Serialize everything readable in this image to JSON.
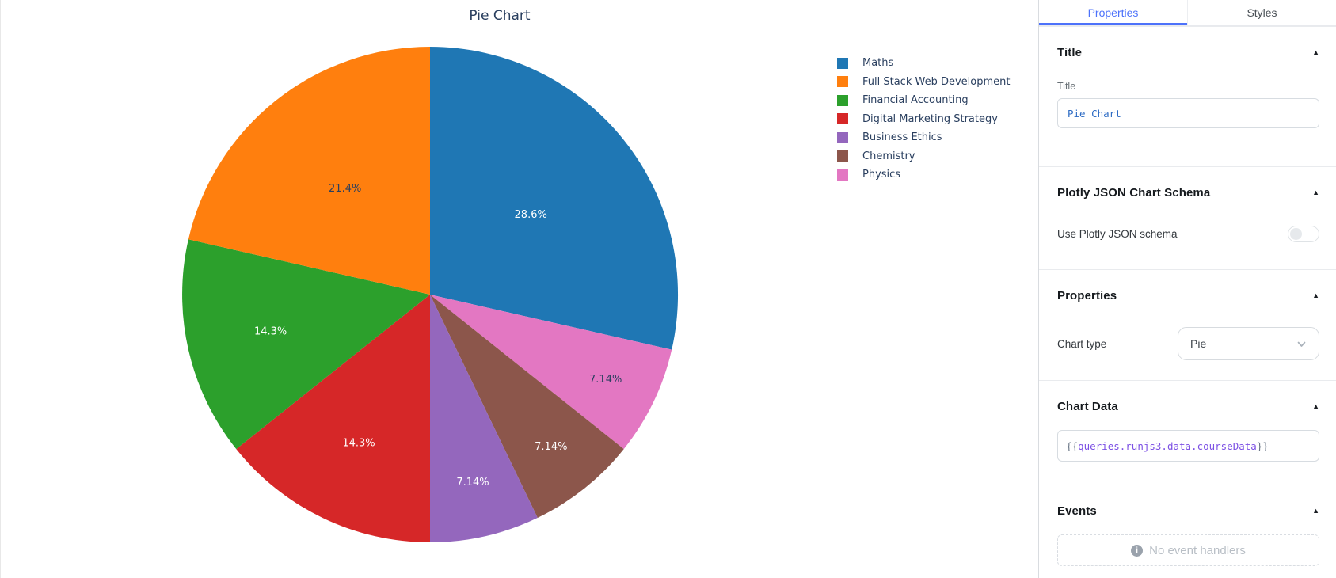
{
  "chart_widget": {
    "title": "Pie Chart"
  },
  "chart_data": {
    "type": "pie",
    "title": "Pie Chart",
    "legend_position": "right",
    "start_angle_deg": 0,
    "direction": "clockwise",
    "slices": [
      {
        "label": "Maths",
        "pct_label": "28.6%",
        "value_pct": 28.571,
        "color": "#1f77b4",
        "text_color": "#ffffff",
        "label_r": 0.52
      },
      {
        "label": "Full Stack Web Development",
        "pct_label": "21.4%",
        "value_pct": 21.429,
        "color": "#ff7f0e",
        "text_color": "#2a3f5f",
        "label_r": 0.55
      },
      {
        "label": "Financial Accounting",
        "pct_label": "14.3%",
        "value_pct": 14.286,
        "color": "#2ca02c",
        "text_color": "#ffffff",
        "label_r": 0.66
      },
      {
        "label": "Digital Marketing Strategy",
        "pct_label": "14.3%",
        "value_pct": 14.286,
        "color": "#d62728",
        "text_color": "#ffffff",
        "label_r": 0.663
      },
      {
        "label": "Business Ethics",
        "pct_label": "7.14%",
        "value_pct": 7.143,
        "color": "#9467bd",
        "text_color": "#ffffff",
        "label_r": 0.775
      },
      {
        "label": "Chemistry",
        "pct_label": "7.14%",
        "value_pct": 7.143,
        "color": "#8c564b",
        "text_color": "#ffffff",
        "label_r": 0.783
      },
      {
        "label": "Physics",
        "pct_label": "7.14%",
        "value_pct": 7.143,
        "color": "#e377c2",
        "text_color": "#2a3f5f",
        "label_r": 0.786
      }
    ],
    "clockwise_draw_order": [
      0,
      6,
      5,
      4,
      3,
      2,
      1
    ]
  },
  "panel": {
    "tabs": [
      {
        "label": "Properties",
        "active": true
      },
      {
        "label": "Styles",
        "active": false
      }
    ],
    "sections": {
      "title": {
        "heading": "Title",
        "field_label": "Title",
        "field_value": "Pie Chart"
      },
      "plotly_schema": {
        "heading": "Plotly JSON Chart Schema",
        "toggle_label": "Use Plotly JSON schema",
        "toggle_on": false
      },
      "properties": {
        "heading": "Properties",
        "chart_type_label": "Chart type",
        "chart_type_value": "Pie"
      },
      "chart_data": {
        "heading": "Chart Data",
        "value": "{{queries.runjs3.data.courseData}}",
        "open_braces": "{{",
        "inner": "queries.runjs3.data.courseData",
        "close_braces": "}}"
      },
      "events": {
        "heading": "Events",
        "empty_text": "No event handlers"
      }
    }
  },
  "icons": {
    "collapse_glyph": "▲",
    "info_glyph": "i"
  },
  "colors": {
    "accent_blue": "#4d72fa",
    "code_text_blue": "#2d6bc4",
    "code_brace_gray": "#6b7787",
    "code_inner_purple": "#7c50e4",
    "chart_text": "#2a3f5f",
    "panel_border": "#d9dce0"
  }
}
